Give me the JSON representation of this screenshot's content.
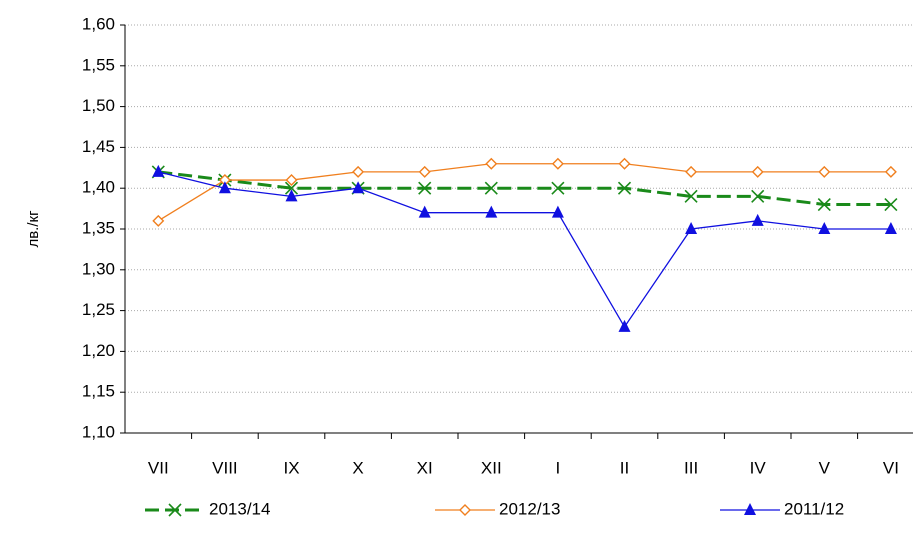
{
  "chart_data": {
    "type": "line",
    "y_label": "лв./кг",
    "categories": [
      "VII",
      "VIII",
      "IX",
      "X",
      "XI",
      "XII",
      "I",
      "II",
      "III",
      "IV",
      "V",
      "VI"
    ],
    "series": [
      {
        "name": "2013/14",
        "color": "#1a8a1a",
        "marker": "x",
        "dashed": true,
        "values": [
          1.42,
          1.41,
          1.4,
          1.4,
          1.4,
          1.4,
          1.4,
          1.4,
          1.39,
          1.39,
          1.38,
          1.38
        ]
      },
      {
        "name": "2012/13",
        "color": "#f07f1e",
        "marker": "diamond",
        "dashed": false,
        "values": [
          1.36,
          1.41,
          1.41,
          1.42,
          1.42,
          1.43,
          1.43,
          1.43,
          1.42,
          1.42,
          1.42,
          1.42
        ]
      },
      {
        "name": "2011/12",
        "color": "#1010e0",
        "marker": "triangle",
        "dashed": false,
        "values": [
          1.42,
          1.4,
          1.39,
          1.4,
          1.37,
          1.37,
          1.37,
          1.23,
          1.35,
          1.36,
          1.35,
          1.35
        ]
      }
    ],
    "ylim": [
      1.1,
      1.6
    ],
    "yticks": [
      {
        "value": 1.1,
        "label": "1,10"
      },
      {
        "value": 1.15,
        "label": "1,15"
      },
      {
        "value": 1.2,
        "label": "1,20"
      },
      {
        "value": 1.25,
        "label": "1,25"
      },
      {
        "value": 1.3,
        "label": "1,30"
      },
      {
        "value": 1.35,
        "label": "1,35"
      },
      {
        "value": 1.4,
        "label": "1,40"
      },
      {
        "value": 1.45,
        "label": "1,45"
      },
      {
        "value": 1.5,
        "label": "1,50"
      },
      {
        "value": 1.55,
        "label": "1,55"
      },
      {
        "value": 1.6,
        "label": "1,60"
      }
    ],
    "grid": true
  }
}
